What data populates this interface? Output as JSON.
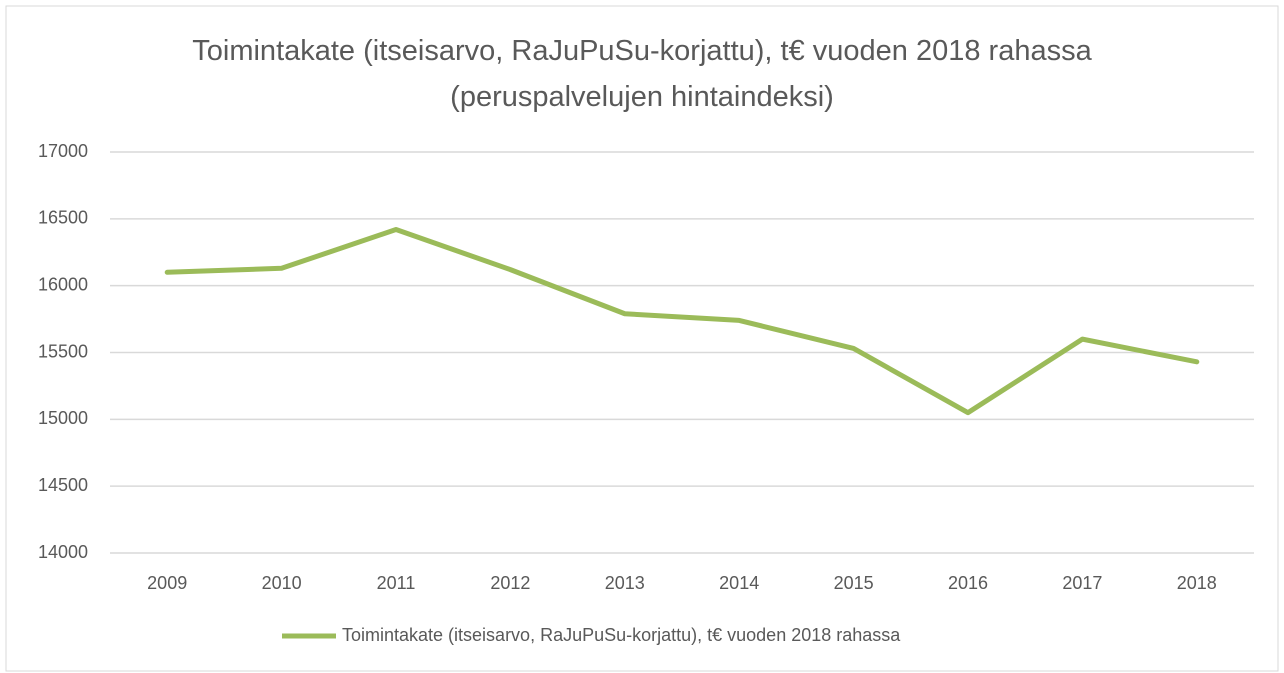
{
  "chart_data": {
    "type": "line",
    "title": "Toimintakate (itseisarvo, RaJuPuSu-korjattu), t€ vuoden 2018 rahassa (peruspalvelujen hintaindeksi)",
    "categories": [
      "2009",
      "2010",
      "2011",
      "2012",
      "2013",
      "2014",
      "2015",
      "2016",
      "2017",
      "2018"
    ],
    "series": [
      {
        "name": "Toimintakate (itseisarvo, RaJuPuSu-korjattu), t€ vuoden 2018 rahassa",
        "color": "#9bbb59",
        "values": [
          16100,
          16130,
          16420,
          16120,
          15790,
          15740,
          15530,
          15050,
          15600,
          15430
        ]
      }
    ],
    "ylim": [
      14000,
      17000
    ],
    "yticks": [
      14000,
      14500,
      15000,
      15500,
      16000,
      16500,
      17000
    ],
    "grid": true,
    "legend": "bottom"
  }
}
